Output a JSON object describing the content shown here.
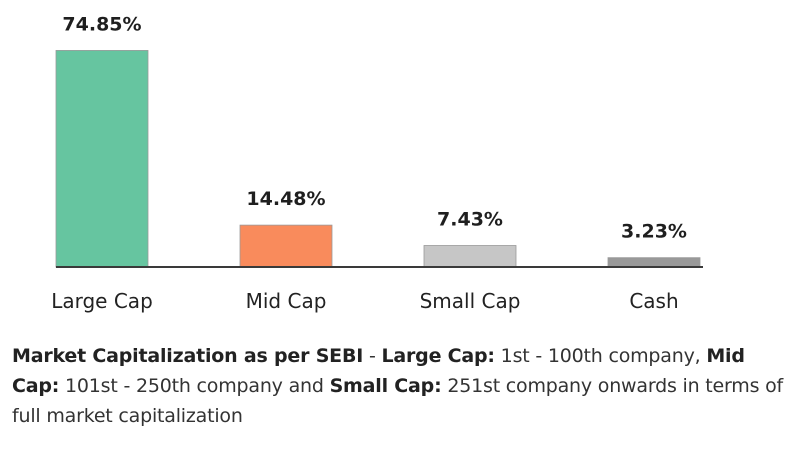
{
  "chart_data": {
    "type": "bar",
    "categories": [
      "Large Cap",
      "Mid Cap",
      "Small Cap",
      "Cash"
    ],
    "values": [
      74.85,
      14.48,
      7.43,
      3.23
    ],
    "value_labels": [
      "74.85%",
      "14.48%",
      "7.43%",
      "3.23%"
    ],
    "colors": [
      "#66c5a0",
      "#f98b5c",
      "#c6c6c6",
      "#999999"
    ],
    "title": "",
    "xlabel": "",
    "ylabel": "",
    "ylim": [
      0,
      75
    ],
    "grid": false,
    "legend": "none"
  },
  "note": {
    "parts": [
      {
        "text": "Market Capitalization as per SEBI",
        "bold": true
      },
      {
        "text": " - ",
        "bold": false
      },
      {
        "text": "Large Cap:",
        "bold": true
      },
      {
        "text": " 1st - 100th company, ",
        "bold": false
      },
      {
        "text": "Mid Cap:",
        "bold": true
      },
      {
        "text": " 101st - 250th company and ",
        "bold": false
      },
      {
        "text": "Small Cap:",
        "bold": true
      },
      {
        "text": " 251st company onwards in terms of full market capitalization",
        "bold": false
      }
    ]
  }
}
